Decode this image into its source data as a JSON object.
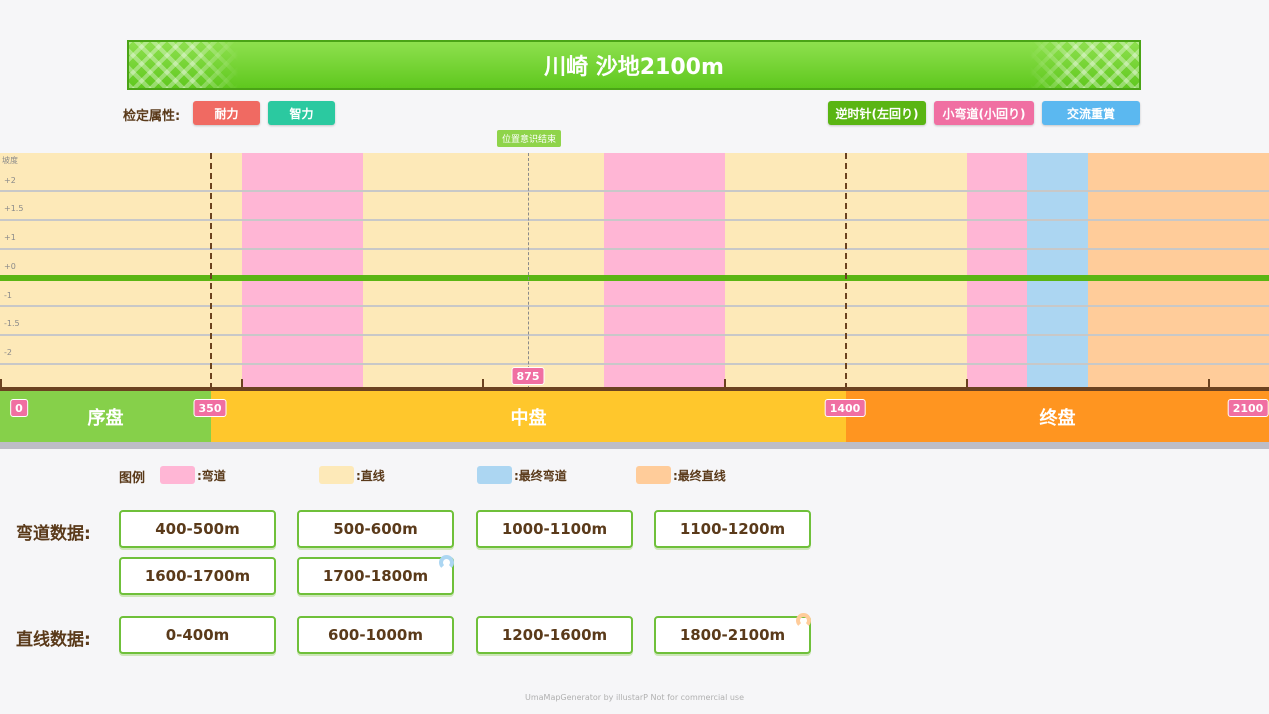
{
  "title": "川崎 沙地2100m",
  "attributes": {
    "label": "检定属性:",
    "tags": [
      {
        "text": "耐力",
        "color": "#f06a62"
      },
      {
        "text": "智力",
        "color": "#2bc9a0"
      }
    ],
    "right_tags": [
      {
        "text": "逆时针(左回り)",
        "color": "#5ab513"
      },
      {
        "text": "小弯道(小回り)",
        "color": "#f06fa2"
      },
      {
        "text": "交流重賞",
        "color": "#5bb8f0"
      }
    ]
  },
  "chart": {
    "slope_label": "坡度",
    "y_labels": [
      "+2",
      "+1.5",
      "+1",
      "+0",
      "-1",
      "-1.5",
      "-2"
    ],
    "position_marker": "位置意识结束",
    "distance_pin": "875",
    "phase_pins": [
      "0",
      "350",
      "1400",
      "2100"
    ],
    "phases": [
      {
        "label": "序盘",
        "color": "#86d04a"
      },
      {
        "label": "中盘",
        "color": "#ffc72c"
      },
      {
        "label": "终盘",
        "color": "#ff9520"
      }
    ]
  },
  "chart_data": {
    "type": "bar",
    "total_distance": 2100,
    "segments": [
      {
        "type": "straight",
        "from": 0,
        "to": 400
      },
      {
        "type": "curve",
        "from": 400,
        "to": 600
      },
      {
        "type": "straight",
        "from": 600,
        "to": 1000
      },
      {
        "type": "curve",
        "from": 1000,
        "to": 1200
      },
      {
        "type": "straight",
        "from": 1200,
        "to": 1600
      },
      {
        "type": "curve",
        "from": 1600,
        "to": 1700
      },
      {
        "type": "final_curve",
        "from": 1700,
        "to": 1800
      },
      {
        "type": "final_straight",
        "from": 1800,
        "to": 2100
      }
    ],
    "phase_boundaries": [
      0,
      350,
      1400,
      2100
    ],
    "position_marker_at": 875,
    "ylim": [
      -2,
      2
    ],
    "slope": 0
  },
  "colors": {
    "curve": "#ffb6d5",
    "straight": "#fde9b8",
    "final_curve": "#acd6f2",
    "final_straight": "#ffcc9a"
  },
  "legend": {
    "title": "图例",
    "items": [
      {
        "label": ":弯道",
        "color": "#ffb6d5"
      },
      {
        "label": ":直线",
        "color": "#fde9b8"
      },
      {
        "label": ":最终弯道",
        "color": "#acd6f2"
      },
      {
        "label": ":最终直线",
        "color": "#ffcc9a"
      }
    ]
  },
  "curve_data": {
    "label": "弯道数据:",
    "items": [
      "400-500m",
      "500-600m",
      "1000-1100m",
      "1100-1200m",
      "1600-1700m",
      "1700-1800m"
    ]
  },
  "straight_data": {
    "label": "直线数据:",
    "items": [
      "0-400m",
      "600-1000m",
      "1200-1600m",
      "1800-2100m"
    ]
  },
  "footer": "UmaMapGenerator by illustarP   Not for commercial use"
}
